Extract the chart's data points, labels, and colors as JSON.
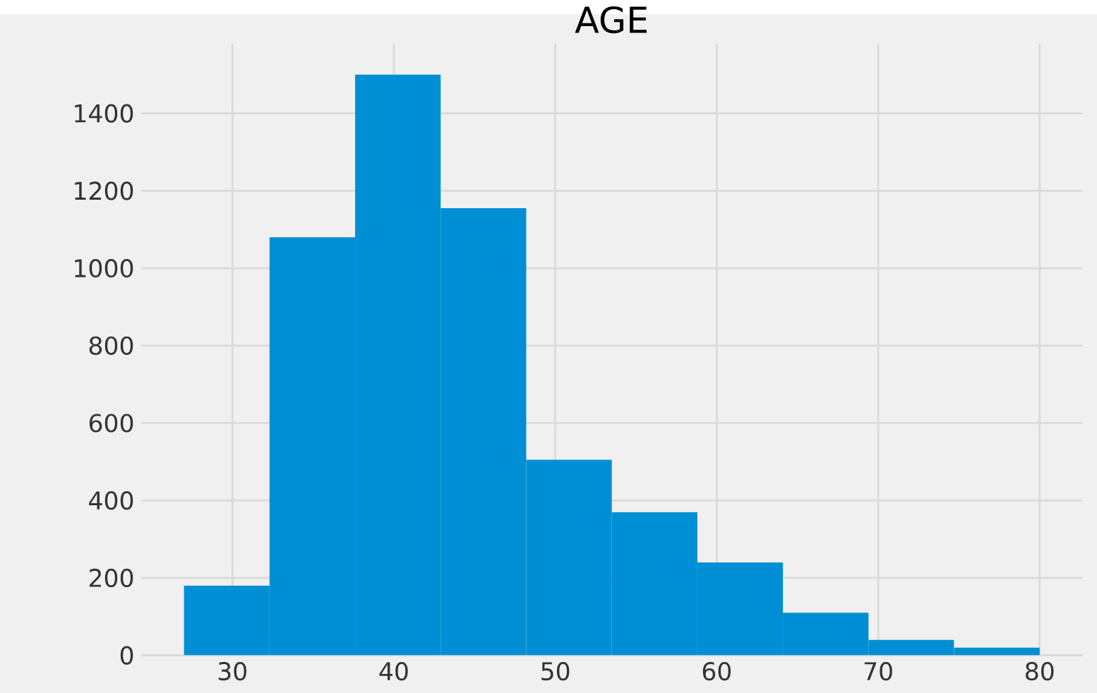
{
  "chart_data": {
    "type": "histogram",
    "title": "AGE",
    "bins": [
      27,
      32.3,
      37.6,
      42.9,
      48.2,
      53.5,
      58.8,
      64.1,
      69.4,
      74.7,
      80
    ],
    "values": [
      180,
      1080,
      1500,
      1155,
      505,
      370,
      240,
      110,
      40,
      20
    ],
    "color": "#008fd5",
    "xlim": [
      24.35,
      82.65
    ],
    "ylim": [
      0,
      1580
    ],
    "xticks": [
      30,
      40,
      50,
      60,
      70,
      80
    ],
    "yticks": [
      0,
      200,
      400,
      600,
      800,
      1000,
      1200,
      1400
    ],
    "grid": true
  }
}
